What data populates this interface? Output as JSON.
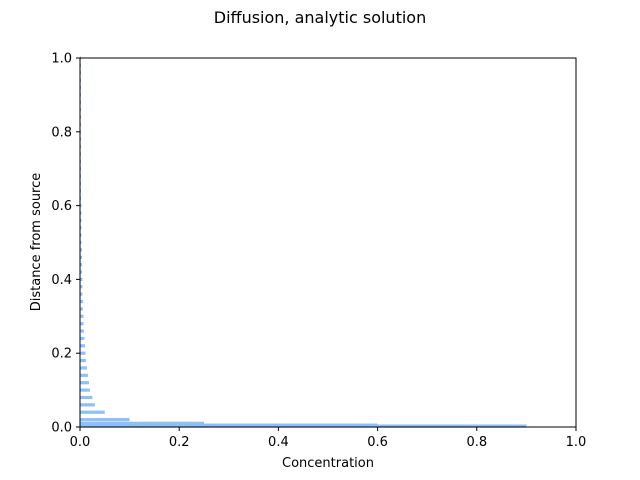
{
  "chart_data": {
    "type": "bar",
    "orientation": "horizontal",
    "title": "Diffusion, analytic solution",
    "xlabel": "Concentration",
    "ylabel": "Distance from source",
    "xlim": [
      0.0,
      1.0
    ],
    "ylim": [
      0.0,
      1.0
    ],
    "xticks": [
      "0.0",
      "0.2",
      "0.4",
      "0.6",
      "0.8",
      "1.0"
    ],
    "yticks": [
      "0.0",
      "0.2",
      "0.4",
      "0.6",
      "0.8",
      "1.0"
    ],
    "grid": false,
    "bar_color": "#8fc0f7",
    "series": [
      {
        "y": [
          0.0025,
          0.005,
          0.01,
          0.02,
          0.04,
          0.06,
          0.08,
          0.1,
          0.12,
          0.14,
          0.16,
          0.18,
          0.2,
          0.22,
          0.24,
          0.26,
          0.28,
          0.3,
          0.32,
          0.34,
          0.36,
          0.38,
          0.4,
          0.42,
          0.44,
          0.46,
          0.48,
          0.5,
          0.52,
          0.54,
          0.56,
          0.58,
          0.6,
          0.62,
          0.64,
          0.66,
          0.68,
          0.7,
          0.72,
          0.74,
          0.76,
          0.78,
          0.8,
          0.82,
          0.84,
          0.86,
          0.88,
          0.9,
          0.92,
          0.94,
          0.96,
          0.98,
          1.0
        ],
        "values": [
          0.9,
          0.6,
          0.25,
          0.1,
          0.05,
          0.03,
          0.025,
          0.02,
          0.018,
          0.016,
          0.014,
          0.012,
          0.011,
          0.01,
          0.009,
          0.008,
          0.007,
          0.007,
          0.006,
          0.006,
          0.005,
          0.005,
          0.005,
          0.004,
          0.004,
          0.004,
          0.004,
          0.003,
          0.003,
          0.003,
          0.003,
          0.003,
          0.003,
          0.002,
          0.002,
          0.002,
          0.002,
          0.002,
          0.002,
          0.002,
          0.002,
          0.002,
          0.002,
          0.002,
          0.002,
          0.002,
          0.002,
          0.002,
          0.002,
          0.002,
          0.002,
          0.002,
          0.002
        ]
      }
    ]
  }
}
